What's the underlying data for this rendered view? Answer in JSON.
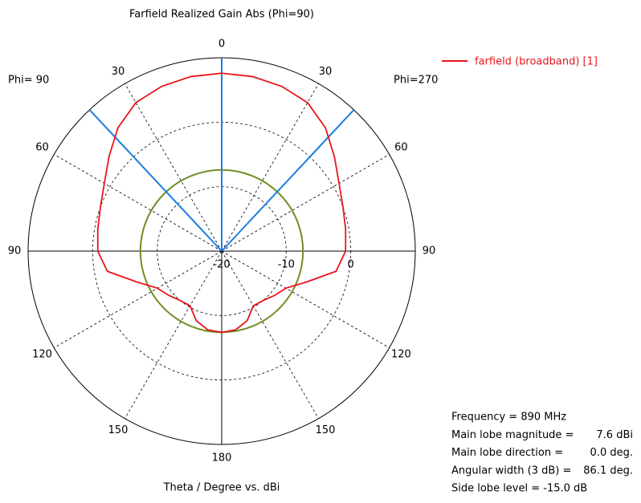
{
  "chart_data": {
    "type": "polar",
    "title": "Farfield Realized Gain Abs (Phi=90)",
    "axis_label": "Theta / Degree vs. dBi",
    "left_label": "Phi= 90",
    "right_label": "Phi=270",
    "rlim": [
      -20,
      10
    ],
    "rticks": [
      -20,
      -10,
      0
    ],
    "thetaticks": [
      0,
      30,
      60,
      90,
      120,
      150,
      180
    ],
    "series": [
      {
        "name": "farfield (broadband) [1]",
        "color": "#e8151b",
        "x": [
          -180,
          -170,
          -160,
          -150,
          -140,
          -130,
          -120,
          -110,
          -100,
          -90,
          -80,
          -70,
          -60,
          -50,
          -40,
          -30,
          -20,
          -10,
          0,
          10,
          20,
          30,
          40,
          50,
          60,
          70,
          80,
          90,
          100,
          110,
          120,
          130,
          140,
          150,
          160,
          170,
          180
        ],
        "values": [
          -7.4,
          -7.6,
          -8.5,
          -10.2,
          -10,
          -9.3,
          -8.5,
          -6,
          -2,
          -0.8,
          -0.5,
          0,
          1,
          2.8,
          5,
          6.6,
          7.2,
          7.5,
          7.6,
          7.5,
          7.2,
          6.6,
          5,
          2.8,
          1,
          0,
          -0.5,
          -0.8,
          -2,
          -6,
          -8.5,
          -9.3,
          -10,
          -10.2,
          -8.5,
          -7.6,
          -7.4
        ]
      }
    ],
    "beam_lines": {
      "color": "#1a7ee0",
      "angles": [
        0,
        -43.05,
        43.05
      ]
    },
    "side_lobe_circle": {
      "color": "#6f8f23",
      "value": -7.4
    },
    "info": [
      {
        "label": "Frequency = 890 MHz"
      },
      {
        "label": "Main lobe magnitude =",
        "value": "7.6 dBi"
      },
      {
        "label": "Main lobe direction =",
        "value": "0.0 deg."
      },
      {
        "label": "Angular width (3 dB) =",
        "value": "86.1 deg."
      },
      {
        "label": "Side lobe level = -15.0 dB"
      }
    ]
  }
}
